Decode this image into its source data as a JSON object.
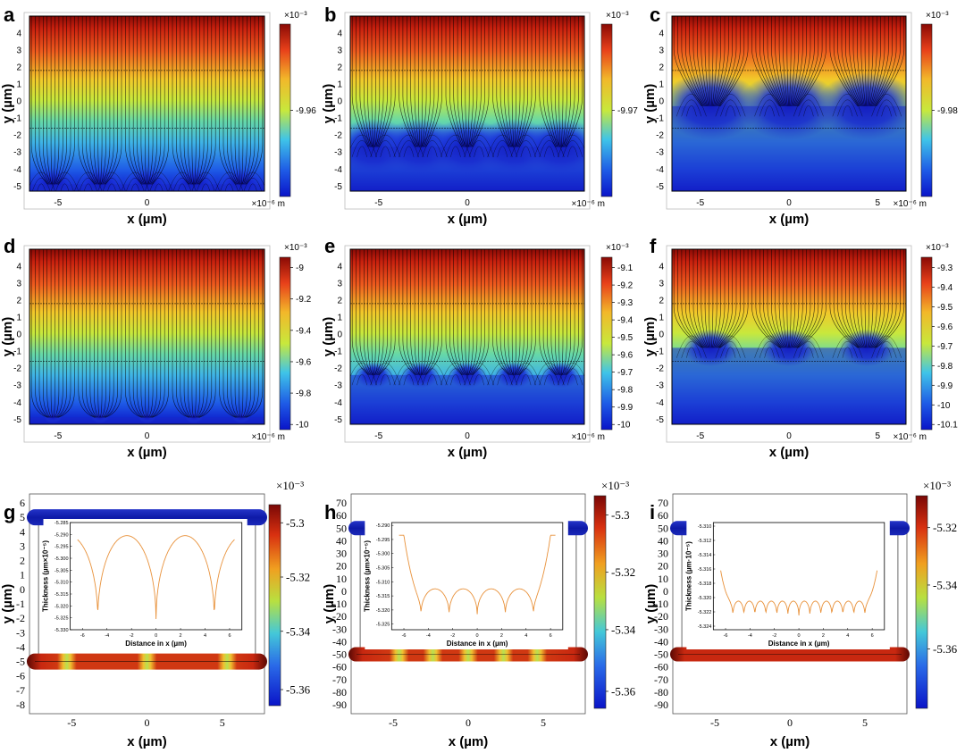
{
  "chart_data": [
    {
      "id": "a",
      "type": "heatmap",
      "panel_label": "a",
      "xlabel": "x (µm)",
      "ylabel": "y (µm)",
      "x_ticks": [
        "-5",
        "0"
      ],
      "x_unit": "×10⁻⁶ m",
      "y_ticks": [
        "4",
        "3",
        "2",
        "1",
        "0",
        "-1",
        "-2",
        "-3",
        "-4",
        "-5"
      ],
      "colorbar": {
        "exponent": "×10⁻³",
        "ticks": [
          "-9.96"
        ]
      },
      "pattern": {
        "blob_y": -4.9,
        "blob_count": 5,
        "blob_r": 0.9
      }
    },
    {
      "id": "b",
      "type": "heatmap",
      "panel_label": "b",
      "xlabel": "x (µm)",
      "ylabel": "y (µm)",
      "x_ticks": [
        "-5",
        "0"
      ],
      "x_unit": "×10⁻⁶ m",
      "y_ticks": [
        "4",
        "3",
        "2",
        "1",
        "0",
        "-1",
        "-2",
        "-3",
        "-4",
        "-5"
      ],
      "colorbar": {
        "exponent": "×10⁻³",
        "ticks": [
          "-9.97"
        ]
      },
      "pattern": {
        "blob_y": -2.7,
        "blob_count": 5,
        "blob_r": 1.5
      }
    },
    {
      "id": "c",
      "type": "heatmap",
      "panel_label": "c",
      "xlabel": "x (µm)",
      "ylabel": "y (µm)",
      "x_ticks": [
        "-5",
        "0",
        "5"
      ],
      "x_unit": "×10⁻⁶ m",
      "y_ticks": [
        "4",
        "3",
        "2",
        "1",
        "0",
        "-1",
        "-2",
        "-3",
        "-4",
        "-5"
      ],
      "colorbar": {
        "exponent": "×10⁻³",
        "ticks": [
          "-9.98"
        ]
      },
      "pattern": {
        "blob_y": -0.3,
        "blob_count": 3,
        "blob_r": 1.8
      }
    },
    {
      "id": "d",
      "type": "heatmap",
      "panel_label": "d",
      "xlabel": "x (µm)",
      "ylabel": "y (µm)",
      "x_ticks": [
        "-5",
        "0"
      ],
      "x_unit": "×10⁻⁶ m",
      "y_ticks": [
        "4",
        "3",
        "2",
        "1",
        "0",
        "-1",
        "-2",
        "-3",
        "-4",
        "-5"
      ],
      "colorbar": {
        "exponent": "×10⁻³",
        "ticks": [
          "-9",
          "-9.2",
          "-9.4",
          "-9.6",
          "-9.8",
          "-10"
        ]
      },
      "pattern": {
        "blob_y": -4.9,
        "blob_count": 5,
        "blob_r": 0.3
      }
    },
    {
      "id": "e",
      "type": "heatmap",
      "panel_label": "e",
      "xlabel": "x (µm)",
      "ylabel": "y (µm)",
      "x_ticks": [
        "-5",
        "0"
      ],
      "x_unit": "×10⁻⁶ m",
      "y_ticks": [
        "4",
        "3",
        "2",
        "1",
        "0",
        "-1",
        "-2",
        "-3",
        "-4",
        "-5"
      ],
      "colorbar": {
        "exponent": "×10⁻³",
        "ticks": [
          "-9.1",
          "-9.2",
          "-9.3",
          "-9.4",
          "-9.5",
          "-9.6",
          "-9.7",
          "-9.8",
          "-9.9",
          "-10"
        ]
      },
      "pattern": {
        "blob_y": -2.4,
        "blob_count": 5,
        "blob_r": 0.7
      }
    },
    {
      "id": "f",
      "type": "heatmap",
      "panel_label": "f",
      "xlabel": "x (µm)",
      "ylabel": "y (µm)",
      "x_ticks": [
        "-5",
        "0",
        "5"
      ],
      "x_unit": "×10⁻⁶ m",
      "y_ticks": [
        "4",
        "3",
        "2",
        "1",
        "0",
        "-1",
        "-2",
        "-3",
        "-4",
        "-5"
      ],
      "colorbar": {
        "exponent": "×10⁻³",
        "ticks": [
          "-9.3",
          "-9.4",
          "-9.5",
          "-9.6",
          "-9.7",
          "-9.8",
          "-9.9",
          "-10",
          "-10.1"
        ]
      },
      "pattern": {
        "blob_y": -0.8,
        "blob_count": 3,
        "blob_r": 1.0
      }
    },
    {
      "id": "g",
      "type": "heatmap",
      "panel_label": "g",
      "xlabel": "x (µm)",
      "ylabel": "y (µm)",
      "x_ticks": [
        "-5",
        "0",
        "5"
      ],
      "y_ticks": [
        "6",
        "5",
        "4",
        "3",
        "2",
        "1",
        "0",
        "-1",
        "-2",
        "-3",
        "-4",
        "-5",
        "-6",
        "-7",
        "-8"
      ],
      "colorbar": {
        "exponent": "×10⁻³",
        "ticks": [
          "-5.3",
          "-5.32",
          "-5.34",
          "-5.36"
        ]
      },
      "bottom_hotspots": [
        -5.2,
        0,
        5.2
      ],
      "inset": {
        "type": "line",
        "xlabel": "Distance in x (µm)",
        "ylabel": "Thickness (µm×10⁻⁵)",
        "x_ticks": [
          "-6",
          "-4",
          "-2",
          "0",
          "2",
          "4",
          "6"
        ],
        "xlim": [
          -7,
          7
        ],
        "y_ticks": [
          "-5.285",
          "-5.290",
          "-5.295",
          "-5.300",
          "-5.305",
          "-5.310",
          "-5.315",
          "-5.320",
          "-5.325",
          "-5.330"
        ],
        "ylim": [
          -5.33,
          -5.285
        ],
        "cusps": [
          -4.75,
          0,
          4.75
        ],
        "y_min": -5.3255,
        "y_peak": -5.2905,
        "y_edge": -5.2905,
        "color": "#e8913a"
      }
    },
    {
      "id": "h",
      "type": "heatmap",
      "panel_label": "h",
      "xlabel": "x (µm)",
      "ylabel": "y (µm)",
      "x_ticks": [
        "-5",
        "0",
        "5"
      ],
      "y_ticks": [
        "70",
        "60",
        "50",
        "40",
        "30",
        "20",
        "10",
        "0",
        "-10",
        "-20",
        "-30",
        "-40",
        "-50",
        "-60",
        "-70",
        "-80",
        "-90"
      ],
      "colorbar": {
        "exponent": "×10⁻³",
        "ticks": [
          "-5.3",
          "-5.32",
          "-5.34",
          "-5.36"
        ]
      },
      "bottom_hotspots": [
        -4.5,
        -2.3,
        0,
        2.3,
        4.5
      ],
      "inset": {
        "type": "line",
        "xlabel": "Distance in x (µm)",
        "ylabel": "Thickness (µm×10⁻⁵)",
        "x_ticks": [
          "-6",
          "-4",
          "-2",
          "0",
          "2",
          "4",
          "6"
        ],
        "xlim": [
          -7,
          7
        ],
        "y_ticks": [
          "-5.290",
          "-5.295",
          "-5.300",
          "-5.305",
          "-5.310",
          "-5.315",
          "-5.320",
          "-5.325"
        ],
        "ylim": [
          -5.327,
          -5.289
        ],
        "cusps": [
          -4.6,
          -2.3,
          0,
          2.3,
          4.6
        ],
        "y_min": -5.3215,
        "y_peak": -5.3125,
        "y_edge": -5.2935,
        "color": "#e8913a"
      }
    },
    {
      "id": "i",
      "type": "heatmap",
      "panel_label": "i",
      "xlabel": "x (µm)",
      "ylabel": "y (µm)",
      "x_ticks": [
        "-5",
        "0",
        "5"
      ],
      "y_ticks": [
        "70",
        "60",
        "50",
        "40",
        "30",
        "20",
        "10",
        "0",
        "-10",
        "-20",
        "-30",
        "-40",
        "-50",
        "-60",
        "-70",
        "-80",
        "-90"
      ],
      "colorbar": {
        "exponent": "×10⁻³",
        "ticks": [
          "-5.32",
          "-5.34",
          "-5.36"
        ]
      },
      "bottom_hotspots": [],
      "inset": {
        "type": "line",
        "xlabel": "Distance in x (µm)",
        "ylabel": "Thickness (µm·10⁻⁵)",
        "x_ticks": [
          "-6",
          "-4",
          "-2",
          "0",
          "2",
          "4",
          "6"
        ],
        "xlim": [
          -7,
          7
        ],
        "y_ticks": [
          "-5.310",
          "-5.312",
          "-5.314",
          "-5.316",
          "-5.318",
          "-5.320",
          "-5.322",
          "-5.324"
        ],
        "ylim": [
          -5.3245,
          -5.3095
        ],
        "cusps": [
          -5.4,
          -4.5,
          -3.6,
          -2.7,
          -1.8,
          -0.9,
          0,
          0.9,
          1.8,
          2.7,
          3.6,
          4.5,
          5.4
        ],
        "y_min": -5.3225,
        "y_peak": -5.3205,
        "y_edge": -5.3115,
        "color": "#e8913a"
      }
    }
  ]
}
